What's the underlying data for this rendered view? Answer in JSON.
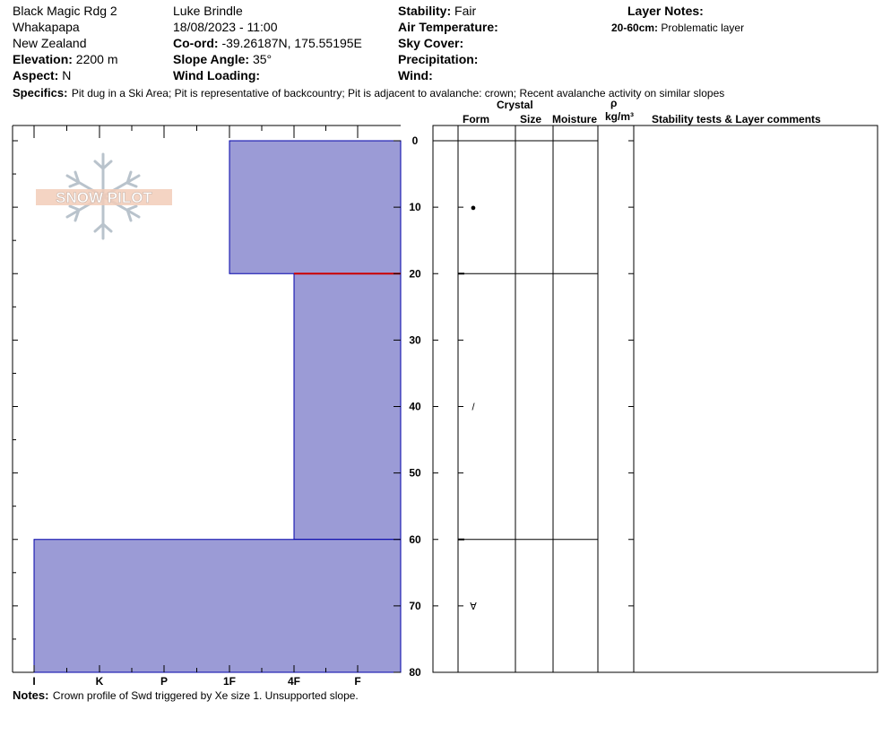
{
  "header": {
    "location_name": "Black Magic Rdg 2",
    "area": "Whakapapa",
    "country": "New Zealand",
    "elevation_label": "Elevation:",
    "elevation": "2200 m",
    "aspect_label": "Aspect:",
    "aspect": "N",
    "observer": "Luke Brindle",
    "datetime": "18/08/2023 - 11:00",
    "coord_label": "Co-ord:",
    "coord": "-39.26187N, 175.55195E",
    "slope_label": "Slope Angle:",
    "slope": "35°",
    "wind_loading_label": "Wind Loading:",
    "wind_loading": "",
    "stability_label": "Stability:",
    "stability": "Fair",
    "air_temp_label": "Air Temperature:",
    "air_temp": "",
    "sky_cover_label": "Sky Cover:",
    "sky_cover": "",
    "precip_label": "Precipitation:",
    "precip": "",
    "wind_label": "Wind:",
    "wind": "",
    "layer_notes_label": "Layer Notes:",
    "layer_note_range": "20-60cm:",
    "layer_note_text": "Problematic layer",
    "specifics_label": "Specifics:",
    "specifics": "Pit dug in a Ski Area;  Pit is representative of backcountry;  Pit is adjacent to avalanche: crown;  Recent avalanche activity on similar slopes"
  },
  "logo": {
    "text": "SNOW PILOT"
  },
  "columns": {
    "crystal": "Crystal",
    "form": "Form",
    "size": "Size",
    "moisture": "Moisture",
    "rho": "ρ",
    "density_unit": "kg/m³",
    "comments": "Stability tests & Layer comments"
  },
  "notes": {
    "label": "Notes:",
    "text": "Crown profile of Swd triggered by Xe size 1. Unsupported slope."
  },
  "colors": {
    "layer_fill": "#9b9bd6",
    "layer_stroke": "#0000aa",
    "weak_layer": "#cc0000"
  },
  "chart_data": {
    "type": "bar",
    "orientation": "horizontal",
    "depth_axis": {
      "ticks": [
        0,
        10,
        20,
        30,
        40,
        50,
        60,
        70,
        80
      ],
      "range": [
        0,
        80
      ]
    },
    "hardness_axis": {
      "ticks": [
        "I",
        "K",
        "P",
        "1F",
        "4F",
        "F"
      ]
    },
    "layers": [
      {
        "top": 0,
        "bottom": 20,
        "hardness": "1F",
        "form_symbol": "●"
      },
      {
        "top": 20,
        "bottom": 60,
        "hardness": "4F",
        "form_symbol": "/"
      },
      {
        "top": 60,
        "bottom": 80,
        "hardness": "I",
        "form_symbol": "∀"
      }
    ],
    "layer_boundaries": [
      0,
      20,
      60
    ],
    "weak_layer_depth": 20
  }
}
